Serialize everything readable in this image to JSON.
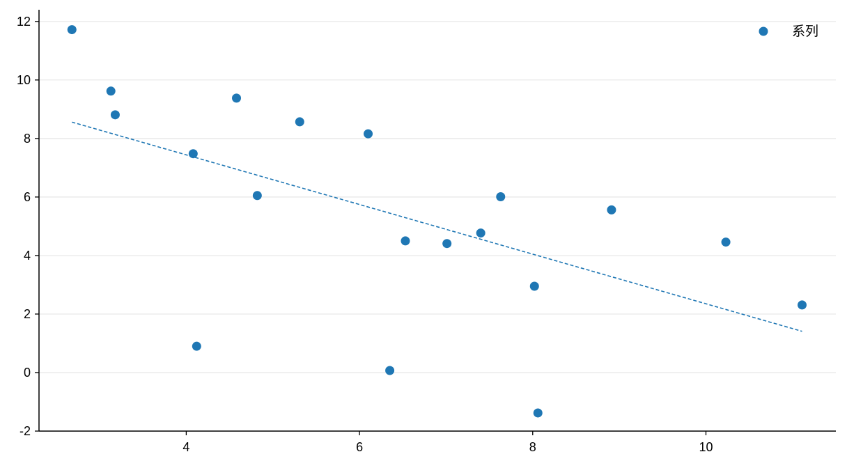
{
  "chart_data": {
    "type": "scatter",
    "title": "",
    "xlabel": "",
    "ylabel": "",
    "xlim": [
      2.3,
      11.5
    ],
    "ylim": [
      -2,
      12.4
    ],
    "x_ticks": [
      4,
      6,
      8,
      10
    ],
    "y_ticks": [
      -2,
      0,
      2,
      4,
      6,
      8,
      10,
      12
    ],
    "grid": "horizontal",
    "legend_position": "top-right",
    "colors": {
      "series": "#1f77b4",
      "grid": "#e6e6e6",
      "axis": "#000000"
    },
    "series": [
      {
        "name": "系列",
        "x": [
          2.68,
          3.13,
          3.18,
          4.08,
          4.12,
          4.58,
          4.82,
          5.31,
          6.1,
          6.35,
          6.53,
          7.01,
          7.4,
          7.63,
          8.02,
          8.06,
          8.91,
          10.23,
          11.11
        ],
        "y": [
          11.72,
          9.62,
          8.81,
          7.48,
          0.9,
          9.38,
          6.05,
          8.57,
          8.16,
          0.07,
          4.5,
          4.41,
          4.77,
          6.01,
          2.95,
          -1.38,
          5.56,
          4.46,
          2.31
        ]
      }
    ],
    "trendline": {
      "style": "dashed",
      "x": [
        2.68,
        11.11
      ],
      "y": [
        8.56,
        1.41
      ]
    }
  }
}
